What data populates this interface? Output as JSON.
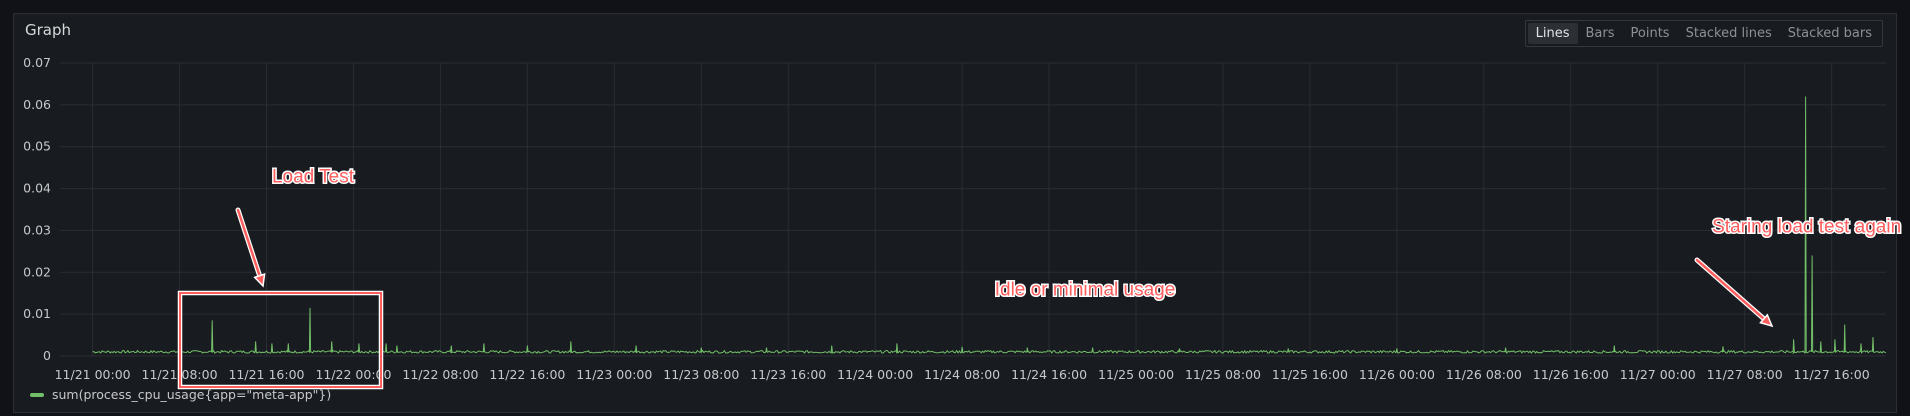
{
  "panel": {
    "title": "Graph"
  },
  "view_modes": [
    {
      "label": "Lines",
      "active": true
    },
    {
      "label": "Bars",
      "active": false
    },
    {
      "label": "Points",
      "active": false
    },
    {
      "label": "Stacked lines",
      "active": false
    },
    {
      "label": "Stacked bars",
      "active": false
    }
  ],
  "colors": {
    "series": "#73bf69",
    "annotation": "#ff5e5e",
    "grid": "#2a2d32"
  },
  "chart_data": {
    "type": "line",
    "x_unit": "hours since 11/21 00:00",
    "x_tick_labels": [
      "11/21 00:00",
      "11/21 08:00",
      "11/21 16:00",
      "11/22 00:00",
      "11/22 08:00",
      "11/22 16:00",
      "11/23 00:00",
      "11/23 08:00",
      "11/23 16:00",
      "11/24 00:00",
      "11/24 08:00",
      "11/24 16:00",
      "11/25 00:00",
      "11/25 08:00",
      "11/25 16:00",
      "11/26 00:00",
      "11/26 08:00",
      "11/26 16:00",
      "11/27 00:00",
      "11/27 08:00",
      "11/27 16:00"
    ],
    "y_tick_labels": [
      "0",
      "0.01",
      "0.02",
      "0.03",
      "0.04",
      "0.05",
      "0.06",
      "0.07"
    ],
    "xlim": [
      -3,
      165
    ],
    "ylim": [
      0,
      0.07
    ],
    "grid": true,
    "legend_position": "bottom-left",
    "series": [
      {
        "name": "sum(process_cpu_usage{app=\"meta-app\"})",
        "baseline": 0.001,
        "spikes": [
          [
            11,
            0.0085
          ],
          [
            15,
            0.0035
          ],
          [
            16.5,
            0.003
          ],
          [
            18,
            0.003
          ],
          [
            20,
            0.0115
          ],
          [
            22,
            0.0035
          ],
          [
            24.5,
            0.003
          ],
          [
            27,
            0.003
          ],
          [
            28,
            0.0025
          ],
          [
            33,
            0.0025
          ],
          [
            36,
            0.003
          ],
          [
            40,
            0.0025
          ],
          [
            44,
            0.0035
          ],
          [
            50,
            0.0025
          ],
          [
            56,
            0.002
          ],
          [
            62,
            0.002
          ],
          [
            68,
            0.0025
          ],
          [
            74,
            0.003
          ],
          [
            80,
            0.0022
          ],
          [
            86,
            0.002
          ],
          [
            92,
            0.002
          ],
          [
            100,
            0.0018
          ],
          [
            110,
            0.0018
          ],
          [
            120,
            0.0018
          ],
          [
            130,
            0.002
          ],
          [
            140,
            0.0025
          ],
          [
            150,
            0.0023
          ],
          [
            156.5,
            0.004
          ],
          [
            157.6,
            0.062
          ],
          [
            158.2,
            0.024
          ],
          [
            159,
            0.0035
          ],
          [
            160.3,
            0.004
          ],
          [
            161.2,
            0.0075
          ],
          [
            162.7,
            0.003
          ],
          [
            163.8,
            0.0045
          ]
        ]
      }
    ],
    "annotations": [
      {
        "text": "Load Test",
        "x": 16.5,
        "y": 0.0415
      },
      {
        "text": "Idle or minimal usage",
        "x": 83,
        "y": 0.0145
      },
      {
        "text": "Staring load test again",
        "x": 149,
        "y": 0.0295
      }
    ]
  }
}
